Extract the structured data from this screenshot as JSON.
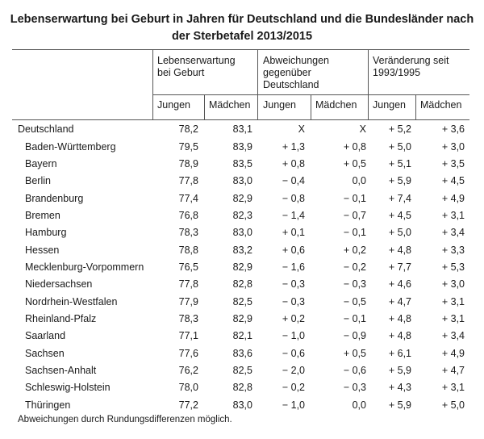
{
  "title_line1": "Lebenserwartung bei Geburt in Jahren für Deutschland und die Bundesländer nach",
  "title_line2": "der Sterbetafel 2013/2015",
  "groups": {
    "lebenserwartung": "Lebenserwartung\nbei Geburt",
    "abweichungen": "Abweichungen\ngegenüber\nDeutschland",
    "veraenderung": "Veränderung seit\n1993/1995"
  },
  "sub_jungen": "Jungen",
  "sub_maedchen": "Mädchen",
  "rows": [
    {
      "name": "Deutschland",
      "j": "78,2",
      "m": "83,1",
      "aj": "X",
      "am": "X",
      "vj": "+ 5,2",
      "vm": "+ 3,6"
    },
    {
      "name": "Baden-Württemberg",
      "j": "79,5",
      "m": "83,9",
      "aj": "+ 1,3",
      "am": "+ 0,8",
      "vj": "+ 5,0",
      "vm": "+ 3,0"
    },
    {
      "name": "Bayern",
      "j": "78,9",
      "m": "83,5",
      "aj": "+ 0,8",
      "am": "+ 0,5",
      "vj": "+ 5,1",
      "vm": "+ 3,5"
    },
    {
      "name": "Berlin",
      "j": "77,8",
      "m": "83,0",
      "aj": "− 0,4",
      "am": "0,0",
      "vj": "+ 5,9",
      "vm": "+ 4,5"
    },
    {
      "name": "Brandenburg",
      "j": "77,4",
      "m": "82,9",
      "aj": "− 0,8",
      "am": "− 0,1",
      "vj": "+ 7,4",
      "vm": "+ 4,9"
    },
    {
      "name": "Bremen",
      "j": "76,8",
      "m": "82,3",
      "aj": "− 1,4",
      "am": "− 0,7",
      "vj": "+ 4,5",
      "vm": "+ 3,1"
    },
    {
      "name": "Hamburg",
      "j": "78,3",
      "m": "83,0",
      "aj": "+ 0,1",
      "am": "− 0,1",
      "vj": "+ 5,0",
      "vm": "+ 3,4"
    },
    {
      "name": "Hessen",
      "j": "78,8",
      "m": "83,2",
      "aj": "+ 0,6",
      "am": "+ 0,2",
      "vj": "+ 4,8",
      "vm": "+ 3,3"
    },
    {
      "name": "Mecklenburg-Vorpommern",
      "j": "76,5",
      "m": "82,9",
      "aj": "− 1,6",
      "am": "− 0,2",
      "vj": "+ 7,7",
      "vm": "+ 5,3"
    },
    {
      "name": "Niedersachsen",
      "j": "77,8",
      "m": "82,8",
      "aj": "− 0,3",
      "am": "− 0,3",
      "vj": "+ 4,6",
      "vm": "+ 3,0"
    },
    {
      "name": "Nordrhein-Westfalen",
      "j": "77,9",
      "m": "82,5",
      "aj": "− 0,3",
      "am": "− 0,5",
      "vj": "+ 4,7",
      "vm": "+ 3,1"
    },
    {
      "name": "Rheinland-Pfalz",
      "j": "78,3",
      "m": "82,9",
      "aj": "+ 0,2",
      "am": "− 0,1",
      "vj": "+ 4,8",
      "vm": "+ 3,1"
    },
    {
      "name": "Saarland",
      "j": "77,1",
      "m": "82,1",
      "aj": "− 1,0",
      "am": "− 0,9",
      "vj": "+ 4,8",
      "vm": "+ 3,4"
    },
    {
      "name": "Sachsen",
      "j": "77,6",
      "m": "83,6",
      "aj": "− 0,6",
      "am": "+ 0,5",
      "vj": "+ 6,1",
      "vm": "+ 4,9"
    },
    {
      "name": "Sachsen-Anhalt",
      "j": "76,2",
      "m": "82,5",
      "aj": "− 2,0",
      "am": "− 0,6",
      "vj": "+ 5,9",
      "vm": "+ 4,7"
    },
    {
      "name": "Schleswig-Holstein",
      "j": "78,0",
      "m": "82,8",
      "aj": "− 0,2",
      "am": "− 0,3",
      "vj": "+ 4,3",
      "vm": "+ 3,1"
    },
    {
      "name": "Thüringen",
      "j": "77,2",
      "m": "83,0",
      "aj": "− 1,0",
      "am": "0,0",
      "vj": "+ 5,9",
      "vm": "+ 5,0"
    }
  ],
  "footnote": "Abweichungen durch Rundungsdifferenzen möglich."
}
